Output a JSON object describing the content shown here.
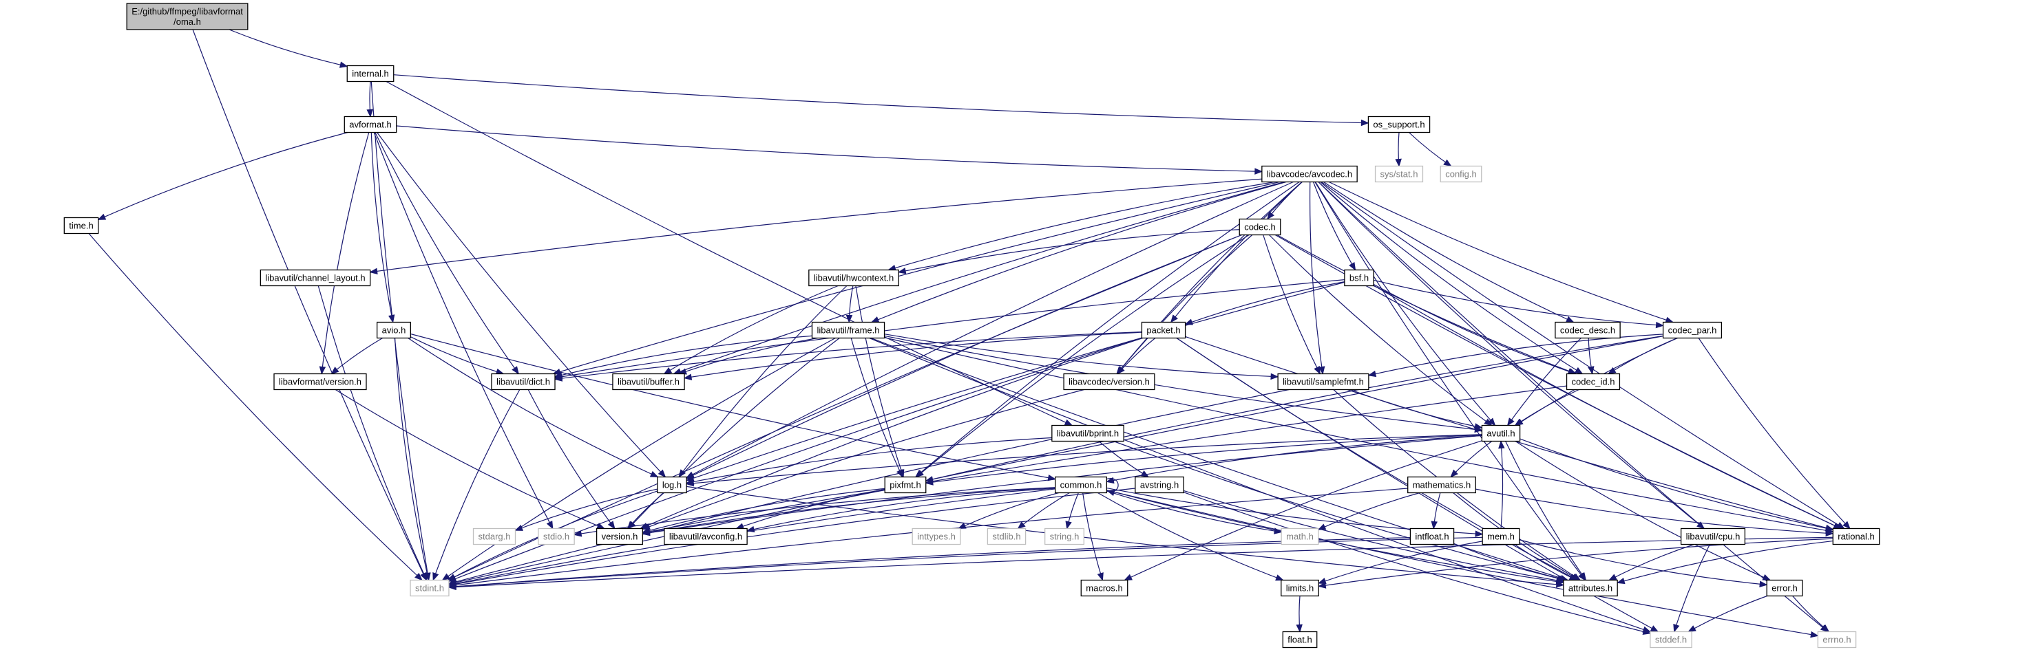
{
  "graph": {
    "colors": {
      "edge": "#191970",
      "root_fill": "#bfbfbf",
      "node_border": "#000000",
      "system_border": "#bfbfbf",
      "system_text": "#7f7f7f"
    },
    "nodes": [
      {
        "id": "oma",
        "label": "E:/github/ffmpeg/libavformat\n/oma.h",
        "kind": "root"
      },
      {
        "id": "internal",
        "label": "internal.h",
        "kind": "file"
      },
      {
        "id": "avformat",
        "label": "avformat.h",
        "kind": "file"
      },
      {
        "id": "os_support",
        "label": "os_support.h",
        "kind": "file"
      },
      {
        "id": "sys_stat",
        "label": "sys/stat.h",
        "kind": "system"
      },
      {
        "id": "config",
        "label": "config.h",
        "kind": "system"
      },
      {
        "id": "avcodec",
        "label": "libavcodec/avcodec.h",
        "kind": "file"
      },
      {
        "id": "time",
        "label": "time.h",
        "kind": "file"
      },
      {
        "id": "channel_layout",
        "label": "libavutil/channel_layout.h",
        "kind": "file"
      },
      {
        "id": "codec",
        "label": "codec.h",
        "kind": "file"
      },
      {
        "id": "hwcontext",
        "label": "libavutil/hwcontext.h",
        "kind": "file"
      },
      {
        "id": "bsf",
        "label": "bsf.h",
        "kind": "file"
      },
      {
        "id": "avio",
        "label": "avio.h",
        "kind": "file"
      },
      {
        "id": "frame",
        "label": "libavutil/frame.h",
        "kind": "file"
      },
      {
        "id": "packet",
        "label": "packet.h",
        "kind": "file"
      },
      {
        "id": "codec_desc",
        "label": "codec_desc.h",
        "kind": "file"
      },
      {
        "id": "codec_par",
        "label": "codec_par.h",
        "kind": "file"
      },
      {
        "id": "lavf_version",
        "label": "libavformat/version.h",
        "kind": "file"
      },
      {
        "id": "dict",
        "label": "libavutil/dict.h",
        "kind": "file"
      },
      {
        "id": "buffer",
        "label": "libavutil/buffer.h",
        "kind": "file"
      },
      {
        "id": "lavc_version",
        "label": "libavcodec/version.h",
        "kind": "file"
      },
      {
        "id": "samplefmt",
        "label": "libavutil/samplefmt.h",
        "kind": "file"
      },
      {
        "id": "codec_id",
        "label": "codec_id.h",
        "kind": "file"
      },
      {
        "id": "bprint",
        "label": "libavutil/bprint.h",
        "kind": "file"
      },
      {
        "id": "avutil",
        "label": "avutil.h",
        "kind": "file"
      },
      {
        "id": "log",
        "label": "log.h",
        "kind": "file"
      },
      {
        "id": "pixfmt",
        "label": "pixfmt.h",
        "kind": "file"
      },
      {
        "id": "common",
        "label": "common.h",
        "kind": "file"
      },
      {
        "id": "avstring",
        "label": "avstring.h",
        "kind": "file"
      },
      {
        "id": "mathematics",
        "label": "mathematics.h",
        "kind": "file"
      },
      {
        "id": "stdarg",
        "label": "stdarg.h",
        "kind": "system"
      },
      {
        "id": "stdio",
        "label": "stdio.h",
        "kind": "system"
      },
      {
        "id": "version",
        "label": "version.h",
        "kind": "file"
      },
      {
        "id": "avconfig",
        "label": "libavutil/avconfig.h",
        "kind": "file"
      },
      {
        "id": "inttypes",
        "label": "inttypes.h",
        "kind": "system"
      },
      {
        "id": "stdlib",
        "label": "stdlib.h",
        "kind": "system"
      },
      {
        "id": "string",
        "label": "string.h",
        "kind": "system"
      },
      {
        "id": "math",
        "label": "math.h",
        "kind": "system"
      },
      {
        "id": "intfloat",
        "label": "intfloat.h",
        "kind": "file"
      },
      {
        "id": "mem",
        "label": "mem.h",
        "kind": "file"
      },
      {
        "id": "cpu",
        "label": "libavutil/cpu.h",
        "kind": "file"
      },
      {
        "id": "rational",
        "label": "rational.h",
        "kind": "file"
      },
      {
        "id": "stdint",
        "label": "stdint.h",
        "kind": "system"
      },
      {
        "id": "macros",
        "label": "macros.h",
        "kind": "file"
      },
      {
        "id": "limits",
        "label": "limits.h",
        "kind": "file"
      },
      {
        "id": "attributes",
        "label": "attributes.h",
        "kind": "file"
      },
      {
        "id": "error",
        "label": "error.h",
        "kind": "file"
      },
      {
        "id": "float",
        "label": "float.h",
        "kind": "file"
      },
      {
        "id": "stddef",
        "label": "stddef.h",
        "kind": "system"
      },
      {
        "id": "errno",
        "label": "errno.h",
        "kind": "system"
      }
    ],
    "edges": [
      [
        "oma",
        "internal"
      ],
      [
        "oma",
        "stdint"
      ],
      [
        "internal",
        "avformat"
      ],
      [
        "internal",
        "os_support"
      ],
      [
        "internal",
        "bprint"
      ],
      [
        "internal",
        "stdint"
      ],
      [
        "os_support",
        "sys_stat"
      ],
      [
        "os_support",
        "config"
      ],
      [
        "avformat",
        "time"
      ],
      [
        "avformat",
        "avcodec"
      ],
      [
        "avformat",
        "avio"
      ],
      [
        "avformat",
        "lavf_version"
      ],
      [
        "avformat",
        "dict"
      ],
      [
        "avformat",
        "log"
      ],
      [
        "avformat",
        "stdio"
      ],
      [
        "time",
        "stdint"
      ],
      [
        "avcodec",
        "channel_layout"
      ],
      [
        "avcodec",
        "codec"
      ],
      [
        "avcodec",
        "hwcontext"
      ],
      [
        "avcodec",
        "bsf"
      ],
      [
        "avcodec",
        "frame"
      ],
      [
        "avcodec",
        "packet"
      ],
      [
        "avcodec",
        "codec_desc"
      ],
      [
        "avcodec",
        "codec_par"
      ],
      [
        "avcodec",
        "lavc_version"
      ],
      [
        "avcodec",
        "dict"
      ],
      [
        "avcodec",
        "buffer"
      ],
      [
        "avcodec",
        "samplefmt"
      ],
      [
        "avcodec",
        "codec_id"
      ],
      [
        "avcodec",
        "avutil"
      ],
      [
        "avcodec",
        "log"
      ],
      [
        "avcodec",
        "pixfmt"
      ],
      [
        "avcodec",
        "rational"
      ],
      [
        "avcodec",
        "cpu"
      ],
      [
        "avcodec",
        "attributes"
      ],
      [
        "avcodec",
        "errno"
      ],
      [
        "channel_layout",
        "stdint"
      ],
      [
        "codec",
        "hwcontext"
      ],
      [
        "codec",
        "lavc_version"
      ],
      [
        "codec",
        "samplefmt"
      ],
      [
        "codec",
        "codec_id"
      ],
      [
        "codec",
        "avutil"
      ],
      [
        "codec",
        "log"
      ],
      [
        "codec",
        "pixfmt"
      ],
      [
        "codec",
        "rational"
      ],
      [
        "codec",
        "stdint"
      ],
      [
        "hwcontext",
        "frame"
      ],
      [
        "hwcontext",
        "buffer"
      ],
      [
        "hwcontext",
        "pixfmt"
      ],
      [
        "hwcontext",
        "log"
      ],
      [
        "bsf",
        "packet"
      ],
      [
        "bsf",
        "codec_par"
      ],
      [
        "bsf",
        "codec_id"
      ],
      [
        "bsf",
        "dict"
      ],
      [
        "bsf",
        "log"
      ],
      [
        "bsf",
        "rational"
      ],
      [
        "avio",
        "lavf_version"
      ],
      [
        "avio",
        "dict"
      ],
      [
        "avio",
        "log"
      ],
      [
        "avio",
        "common"
      ],
      [
        "avio",
        "stdint"
      ],
      [
        "frame",
        "buffer"
      ],
      [
        "frame",
        "dict"
      ],
      [
        "frame",
        "samplefmt"
      ],
      [
        "frame",
        "avutil"
      ],
      [
        "frame",
        "pixfmt"
      ],
      [
        "frame",
        "rational"
      ],
      [
        "frame",
        "version"
      ],
      [
        "frame",
        "stdint"
      ],
      [
        "frame",
        "stddef"
      ],
      [
        "frame",
        "attributes"
      ],
      [
        "packet",
        "lavc_version"
      ],
      [
        "packet",
        "buffer"
      ],
      [
        "packet",
        "dict"
      ],
      [
        "packet",
        "rational"
      ],
      [
        "packet",
        "attributes"
      ],
      [
        "packet",
        "version"
      ],
      [
        "packet",
        "stdint"
      ],
      [
        "packet",
        "stddef"
      ],
      [
        "codec_desc",
        "codec_id"
      ],
      [
        "codec_desc",
        "avutil"
      ],
      [
        "codec_par",
        "codec_id"
      ],
      [
        "codec_par",
        "avutil"
      ],
      [
        "codec_par",
        "pixfmt"
      ],
      [
        "codec_par",
        "rational"
      ],
      [
        "codec_par",
        "samplefmt"
      ],
      [
        "codec_par",
        "stdint"
      ],
      [
        "lavf_version",
        "version"
      ],
      [
        "dict",
        "stdint"
      ],
      [
        "dict",
        "version"
      ],
      [
        "lavc_version",
        "version"
      ],
      [
        "samplefmt",
        "avutil"
      ],
      [
        "samplefmt",
        "attributes"
      ],
      [
        "samplefmt",
        "stdint"
      ],
      [
        "codec_id",
        "avutil"
      ],
      [
        "codec_id",
        "version"
      ],
      [
        "bprint",
        "avstring"
      ],
      [
        "bprint",
        "attributes"
      ],
      [
        "bprint",
        "log"
      ],
      [
        "avutil",
        "common"
      ],
      [
        "avutil",
        "mathematics"
      ],
      [
        "avutil",
        "rational"
      ],
      [
        "avutil",
        "log"
      ],
      [
        "avutil",
        "pixfmt"
      ],
      [
        "avutil",
        "version"
      ],
      [
        "avutil",
        "macros"
      ],
      [
        "avutil",
        "error"
      ],
      [
        "avutil",
        "attributes"
      ],
      [
        "log",
        "stdarg"
      ],
      [
        "log",
        "version"
      ],
      [
        "log",
        "attributes"
      ],
      [
        "log",
        "stdint"
      ],
      [
        "pixfmt",
        "version"
      ],
      [
        "pixfmt",
        "avconfig"
      ],
      [
        "common",
        "common"
      ],
      [
        "common",
        "stdio"
      ],
      [
        "common",
        "inttypes"
      ],
      [
        "common",
        "stdlib"
      ],
      [
        "common",
        "string"
      ],
      [
        "common",
        "math"
      ],
      [
        "common",
        "limits"
      ],
      [
        "common",
        "stdint"
      ],
      [
        "common",
        "errno"
      ],
      [
        "common",
        "attributes"
      ],
      [
        "common",
        "macros"
      ],
      [
        "common",
        "version"
      ],
      [
        "common",
        "avconfig"
      ],
      [
        "common",
        "mem"
      ],
      [
        "avstring",
        "stddef"
      ],
      [
        "avstring",
        "stdint"
      ],
      [
        "avstring",
        "attributes"
      ],
      [
        "mathematics",
        "math"
      ],
      [
        "mathematics",
        "intfloat"
      ],
      [
        "mathematics",
        "rational"
      ],
      [
        "mathematics",
        "attributes"
      ],
      [
        "mathematics",
        "stdint"
      ],
      [
        "intfloat",
        "stdint"
      ],
      [
        "intfloat",
        "attributes"
      ],
      [
        "mem",
        "limits"
      ],
      [
        "mem",
        "stdint"
      ],
      [
        "mem",
        "attributes"
      ],
      [
        "mem",
        "error"
      ],
      [
        "mem",
        "avutil"
      ],
      [
        "cpu",
        "attributes"
      ],
      [
        "cpu",
        "stddef"
      ],
      [
        "rational",
        "stdint"
      ],
      [
        "rational",
        "limits"
      ],
      [
        "rational",
        "attributes"
      ],
      [
        "limits",
        "float"
      ],
      [
        "error",
        "errno"
      ],
      [
        "error",
        "stddef"
      ]
    ]
  }
}
